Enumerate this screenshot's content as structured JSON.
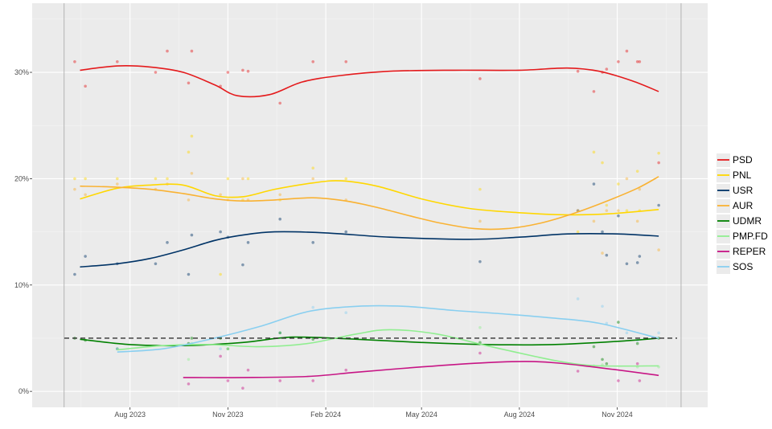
{
  "chart_data": {
    "type": "line",
    "title": "",
    "xlabel": "",
    "ylabel": "",
    "x_domain": [
      "2023-05-01",
      "2025-01-25"
    ],
    "ylim": [
      -1.5,
      36.5
    ],
    "x_ticks": [
      {
        "date": "2023-08-01",
        "label": "Aug 2023"
      },
      {
        "date": "2023-11-01",
        "label": "Nov 2023"
      },
      {
        "date": "2024-02-01",
        "label": "Feb 2024"
      },
      {
        "date": "2024-05-01",
        "label": "May 2024"
      },
      {
        "date": "2024-08-01",
        "label": "Aug 2024"
      },
      {
        "date": "2024-11-01",
        "label": "Nov 2024"
      }
    ],
    "y_ticks": [
      {
        "value": 0,
        "label": "0%"
      },
      {
        "value": 10,
        "label": "10%"
      },
      {
        "value": 20,
        "label": "20%"
      },
      {
        "value": 30,
        "label": "30%"
      }
    ],
    "vertical_lines": [
      "2023-05-31",
      "2024-12-31"
    ],
    "threshold": {
      "value": 5,
      "style": "dashed",
      "color": "#333333"
    },
    "grid": true,
    "legend_position": "right",
    "series": [
      {
        "name": "PSD",
        "color": "#e41a1c",
        "points": [
          {
            "x": "2023-06-15",
            "y": 30.2
          },
          {
            "x": "2023-07-20",
            "y": 30.6
          },
          {
            "x": "2023-08-20",
            "y": 30.5
          },
          {
            "x": "2023-09-20",
            "y": 30.0
          },
          {
            "x": "2023-10-20",
            "y": 28.8
          },
          {
            "x": "2023-11-10",
            "y": 27.8
          },
          {
            "x": "2023-12-10",
            "y": 27.9
          },
          {
            "x": "2024-01-10",
            "y": 29.1
          },
          {
            "x": "2024-02-15",
            "y": 29.7
          },
          {
            "x": "2024-04-01",
            "y": 30.1
          },
          {
            "x": "2024-06-01",
            "y": 30.2
          },
          {
            "x": "2024-08-01",
            "y": 30.2
          },
          {
            "x": "2024-09-15",
            "y": 30.4
          },
          {
            "x": "2024-10-15",
            "y": 30.1
          },
          {
            "x": "2024-11-15",
            "y": 29.2
          },
          {
            "x": "2024-12-10",
            "y": 28.2
          }
        ]
      },
      {
        "name": "PNL",
        "color": "#ffd700",
        "points": [
          {
            "x": "2023-06-15",
            "y": 18.1
          },
          {
            "x": "2023-07-20",
            "y": 19.1
          },
          {
            "x": "2023-08-20",
            "y": 19.4
          },
          {
            "x": "2023-09-20",
            "y": 19.4
          },
          {
            "x": "2023-10-20",
            "y": 18.4
          },
          {
            "x": "2023-11-15",
            "y": 18.3
          },
          {
            "x": "2023-12-15",
            "y": 19.0
          },
          {
            "x": "2024-01-20",
            "y": 19.6
          },
          {
            "x": "2024-02-15",
            "y": 19.8
          },
          {
            "x": "2024-03-20",
            "y": 19.3
          },
          {
            "x": "2024-05-01",
            "y": 18.1
          },
          {
            "x": "2024-06-15",
            "y": 17.2
          },
          {
            "x": "2024-08-01",
            "y": 16.8
          },
          {
            "x": "2024-09-15",
            "y": 16.6
          },
          {
            "x": "2024-10-25",
            "y": 16.7
          },
          {
            "x": "2024-12-10",
            "y": 17.1
          }
        ]
      },
      {
        "name": "USR",
        "color": "#003366",
        "points": [
          {
            "x": "2023-06-15",
            "y": 11.7
          },
          {
            "x": "2023-07-20",
            "y": 12.0
          },
          {
            "x": "2023-08-20",
            "y": 12.5
          },
          {
            "x": "2023-09-20",
            "y": 13.3
          },
          {
            "x": "2023-10-20",
            "y": 14.2
          },
          {
            "x": "2023-11-15",
            "y": 14.7
          },
          {
            "x": "2023-12-15",
            "y": 15.0
          },
          {
            "x": "2024-02-01",
            "y": 14.9
          },
          {
            "x": "2024-04-01",
            "y": 14.5
          },
          {
            "x": "2024-06-15",
            "y": 14.3
          },
          {
            "x": "2024-08-01",
            "y": 14.5
          },
          {
            "x": "2024-09-15",
            "y": 14.8
          },
          {
            "x": "2024-11-01",
            "y": 14.8
          },
          {
            "x": "2024-12-10",
            "y": 14.6
          }
        ]
      },
      {
        "name": "AUR",
        "color": "#f9b233",
        "points": [
          {
            "x": "2023-06-15",
            "y": 19.3
          },
          {
            "x": "2023-07-20",
            "y": 19.2
          },
          {
            "x": "2023-08-20",
            "y": 19.0
          },
          {
            "x": "2023-09-20",
            "y": 18.6
          },
          {
            "x": "2023-10-20",
            "y": 18.1
          },
          {
            "x": "2023-11-15",
            "y": 17.9
          },
          {
            "x": "2023-12-15",
            "y": 18.0
          },
          {
            "x": "2024-01-20",
            "y": 18.2
          },
          {
            "x": "2024-02-20",
            "y": 17.9
          },
          {
            "x": "2024-03-20",
            "y": 17.3
          },
          {
            "x": "2024-04-20",
            "y": 16.5
          },
          {
            "x": "2024-05-20",
            "y": 15.8
          },
          {
            "x": "2024-06-20",
            "y": 15.3
          },
          {
            "x": "2024-07-20",
            "y": 15.3
          },
          {
            "x": "2024-08-20",
            "y": 15.8
          },
          {
            "x": "2024-09-20",
            "y": 16.7
          },
          {
            "x": "2024-10-20",
            "y": 17.8
          },
          {
            "x": "2024-11-20",
            "y": 19.1
          },
          {
            "x": "2024-12-10",
            "y": 20.2
          }
        ]
      },
      {
        "name": "UDMR",
        "color": "#008000",
        "points": [
          {
            "x": "2023-06-15",
            "y": 4.9
          },
          {
            "x": "2023-08-01",
            "y": 4.4
          },
          {
            "x": "2023-09-20",
            "y": 4.3
          },
          {
            "x": "2023-11-15",
            "y": 4.6
          },
          {
            "x": "2024-01-01",
            "y": 5.1
          },
          {
            "x": "2024-03-01",
            "y": 4.9
          },
          {
            "x": "2024-05-01",
            "y": 4.6
          },
          {
            "x": "2024-07-01",
            "y": 4.4
          },
          {
            "x": "2024-09-01",
            "y": 4.4
          },
          {
            "x": "2024-11-01",
            "y": 4.7
          },
          {
            "x": "2024-12-10",
            "y": 5.0
          }
        ]
      },
      {
        "name": "PMP.FD",
        "color": "#90ee90",
        "points": [
          {
            "x": "2023-07-20",
            "y": 3.9
          },
          {
            "x": "2023-09-01",
            "y": 4.3
          },
          {
            "x": "2023-10-15",
            "y": 4.4
          },
          {
            "x": "2023-12-01",
            "y": 4.2
          },
          {
            "x": "2024-01-15",
            "y": 4.5
          },
          {
            "x": "2024-03-01",
            "y": 5.4
          },
          {
            "x": "2024-04-01",
            "y": 5.8
          },
          {
            "x": "2024-05-15",
            "y": 5.4
          },
          {
            "x": "2024-07-01",
            "y": 4.3
          },
          {
            "x": "2024-08-15",
            "y": 3.3
          },
          {
            "x": "2024-09-15",
            "y": 2.7
          },
          {
            "x": "2024-10-15",
            "y": 2.4
          },
          {
            "x": "2024-12-10",
            "y": 2.4
          }
        ]
      },
      {
        "name": "REPER",
        "color": "#c71585",
        "points": [
          {
            "x": "2023-09-20",
            "y": 1.3
          },
          {
            "x": "2023-11-15",
            "y": 1.3
          },
          {
            "x": "2024-01-15",
            "y": 1.4
          },
          {
            "x": "2024-03-01",
            "y": 1.8
          },
          {
            "x": "2024-05-01",
            "y": 2.3
          },
          {
            "x": "2024-07-01",
            "y": 2.7
          },
          {
            "x": "2024-08-15",
            "y": 2.8
          },
          {
            "x": "2024-10-01",
            "y": 2.4
          },
          {
            "x": "2024-12-10",
            "y": 1.5
          }
        ]
      },
      {
        "name": "SOS",
        "color": "#89cff0",
        "points": [
          {
            "x": "2023-07-20",
            "y": 3.7
          },
          {
            "x": "2023-09-01",
            "y": 4.0
          },
          {
            "x": "2023-10-15",
            "y": 4.9
          },
          {
            "x": "2023-12-01",
            "y": 6.1
          },
          {
            "x": "2024-01-15",
            "y": 7.5
          },
          {
            "x": "2024-03-01",
            "y": 8.0
          },
          {
            "x": "2024-04-15",
            "y": 8.0
          },
          {
            "x": "2024-06-01",
            "y": 7.6
          },
          {
            "x": "2024-07-15",
            "y": 7.3
          },
          {
            "x": "2024-09-01",
            "y": 6.9
          },
          {
            "x": "2024-10-15",
            "y": 6.4
          },
          {
            "x": "2024-12-10",
            "y": 5.0
          }
        ]
      }
    ],
    "polls": [
      {
        "x": "2023-06-10",
        "PSD": 31,
        "PNL": 20,
        "USR": 11,
        "AUR": 19,
        "UDMR": 5
      },
      {
        "x": "2023-06-20",
        "PSD": 28.7,
        "PNL": 20,
        "USR": 12.7,
        "AUR": 18.5,
        "UDMR": 4.8
      },
      {
        "x": "2023-07-20",
        "PSD": 31,
        "PNL": 20,
        "USR": 12,
        "AUR": 19.5,
        "UDMR": 4,
        "SOS": 4
      },
      {
        "x": "2023-08-25",
        "PSD": 30,
        "PNL": 20,
        "USR": 12,
        "AUR": 19
      },
      {
        "x": "2023-09-05",
        "PSD": 32,
        "PNL": 20,
        "USR": 14,
        "AUR": 19.5
      },
      {
        "x": "2023-09-25",
        "PSD": 29,
        "PNL": 22.5,
        "USR": 11,
        "AUR": 18,
        "REPER": 0.7,
        "UDMR": 4.5,
        "PMP.FD": 3
      },
      {
        "x": "2023-09-28",
        "PSD": 32,
        "PNL": 24,
        "USR": 14.7,
        "AUR": 20.5,
        "UDMR": 5,
        "PMP.FD": 4.5
      },
      {
        "x": "2023-10-25",
        "PSD": 28.7,
        "PNL": 11,
        "USR": 15,
        "AUR": 18.5,
        "REPER": 3.3,
        "SOS": 4,
        "UDMR": 5
      },
      {
        "x": "2023-11-01",
        "PSD": 30,
        "PNL": 20,
        "USR": 14.5,
        "AUR": 18,
        "REPER": 1,
        "UDMR": 4,
        "PMP.FD": 4
      },
      {
        "x": "2023-11-15",
        "PSD": 30.2,
        "PNL": 18,
        "USR": 11.9,
        "AUR": 20,
        "REPER": 0.3,
        "SOS": 5
      },
      {
        "x": "2023-11-20",
        "PSD": 30.1,
        "PNL": 20,
        "USR": 14,
        "AUR": 18,
        "REPER": 2
      },
      {
        "x": "2023-12-20",
        "PSD": 27.1,
        "PNL": 18,
        "USR": 16.2,
        "AUR": 18.5,
        "SOS": 5.5,
        "UDMR": 5.5,
        "REPER": 1
      },
      {
        "x": "2024-01-20",
        "PSD": 31,
        "PNL": 21,
        "USR": 14,
        "AUR": 20,
        "SOS": 7.9,
        "UDMR": 4.9,
        "REPER": 1
      },
      {
        "x": "2024-02-20",
        "PSD": 31,
        "PNL": 20,
        "USR": 15,
        "AUR": 18,
        "SOS": 7.4,
        "REPER": 2
      },
      {
        "x": "2024-06-25",
        "PSD": 29.4,
        "PNL": 19,
        "USR": 12.2,
        "AUR": 16,
        "PMP.FD": 6,
        "REPER": 3.6,
        "UDMR": 4.6
      },
      {
        "x": "2024-09-25",
        "PSD": 30.1,
        "PNL": 15,
        "USR": 17,
        "AUR": 17,
        "SOS": 8.7,
        "REPER": 1.9
      },
      {
        "x": "2024-10-10",
        "PSD": 28.2,
        "PNL": 22.5,
        "USR": 19.5,
        "AUR": 16,
        "UDMR": 4.2,
        "PMP.FD": 2.4
      },
      {
        "x": "2024-10-18",
        "PSD": 30,
        "PNL": 21.5,
        "USR": 15,
        "AUR": 13,
        "SOS": 8,
        "UDMR": 3,
        "PMP.FD": 2.5
      },
      {
        "x": "2024-10-22",
        "PSD": 30.3,
        "PNL": 17.5,
        "USR": 12.8,
        "AUR": 17,
        "SOS": 6.4,
        "UDMR": 2.6
      },
      {
        "x": "2024-11-02",
        "PSD": 31,
        "PNL": 19.5,
        "USR": 16.5,
        "AUR": 17,
        "REPER": 1,
        "UDMR": 6.5
      },
      {
        "x": "2024-11-10",
        "PSD": 32,
        "PNL": 17,
        "USR": 12,
        "AUR": 20,
        "SOS": 5.5
      },
      {
        "x": "2024-11-20",
        "PSD": 31,
        "PNL": 20.7,
        "USR": 12.1,
        "AUR": 16,
        "SOS": 4.8,
        "REPER": 2.6,
        "UDMR": 4.5,
        "PMP.FD": 2.3
      },
      {
        "x": "2024-11-22",
        "PSD": 31,
        "PNL": 17,
        "USR": 12.7,
        "AUR": 19,
        "REPER": 1
      },
      {
        "x": "2024-12-10",
        "PSD": 21.5,
        "PNL": 22.4,
        "USR": 17.5,
        "AUR": 13.3,
        "SOS": 5.5,
        "UDMR": 5,
        "PMP.FD": 2.3
      }
    ]
  }
}
